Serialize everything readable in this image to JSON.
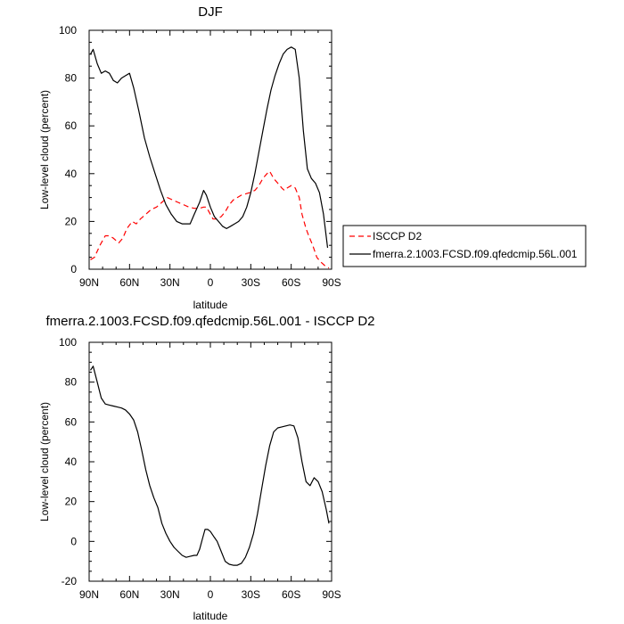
{
  "chart_data": [
    {
      "type": "line",
      "title": "DJF",
      "xlabel": "latitude",
      "ylabel": "Low-level cloud (percent)",
      "xlim": [
        90,
        -90
      ],
      "ylim": [
        0,
        100
      ],
      "x_tick_labels": [
        "90N",
        "60N",
        "30N",
        "0",
        "30S",
        "60S",
        "90S"
      ],
      "x_tick_values": [
        90,
        60,
        30,
        0,
        -30,
        -60,
        -90
      ],
      "y_tick_values": [
        0,
        20,
        40,
        60,
        80,
        100
      ],
      "legend_position": "right",
      "series": [
        {
          "name": "ISCCP D2",
          "color": "#ff0000",
          "dash": true,
          "points": [
            [
              89,
              4
            ],
            [
              86,
              5
            ],
            [
              82,
              10
            ],
            [
              78,
              14
            ],
            [
              75,
              14
            ],
            [
              72,
              13
            ],
            [
              68,
              11
            ],
            [
              65,
              13
            ],
            [
              62,
              17
            ],
            [
              58,
              20
            ],
            [
              55,
              19
            ],
            [
              52,
              21
            ],
            [
              48,
              23
            ],
            [
              44,
              25
            ],
            [
              40,
              26
            ],
            [
              36,
              28
            ],
            [
              32,
              30
            ],
            [
              28,
              29
            ],
            [
              24,
              28
            ],
            [
              20,
              27
            ],
            [
              16,
              26
            ],
            [
              12,
              25.5
            ],
            [
              8,
              25.5
            ],
            [
              5,
              26
            ],
            [
              3,
              26
            ],
            [
              0,
              23
            ],
            [
              -2,
              21
            ],
            [
              -5,
              21
            ],
            [
              -8,
              22
            ],
            [
              -11,
              24
            ],
            [
              -14,
              27
            ],
            [
              -17,
              29
            ],
            [
              -20,
              30
            ],
            [
              -23,
              31
            ],
            [
              -26,
              31.5
            ],
            [
              -29,
              32
            ],
            [
              -33,
              33
            ],
            [
              -36,
              35
            ],
            [
              -39,
              38
            ],
            [
              -42,
              40
            ],
            [
              -44,
              41
            ],
            [
              -47,
              38
            ],
            [
              -50,
              36
            ],
            [
              -53,
              34
            ],
            [
              -55,
              33
            ],
            [
              -57,
              34
            ],
            [
              -60,
              35
            ],
            [
              -63,
              34
            ],
            [
              -66,
              30
            ],
            [
              -68,
              23
            ],
            [
              -71,
              17
            ],
            [
              -73,
              14
            ],
            [
              -76,
              10
            ],
            [
              -79,
              5
            ],
            [
              -82,
              3
            ],
            [
              -85,
              1.5
            ],
            [
              -88,
              0.5
            ]
          ]
        },
        {
          "name": "fmerra.2.1003.FCSD.f09.qfedcmip.56L.001",
          "color": "#000000",
          "dash": false,
          "points": [
            [
              89,
              90
            ],
            [
              87,
              92
            ],
            [
              84,
              86
            ],
            [
              81,
              82
            ],
            [
              78,
              83
            ],
            [
              75,
              82
            ],
            [
              72,
              79
            ],
            [
              69,
              78
            ],
            [
              66,
              80
            ],
            [
              63,
              81
            ],
            [
              60,
              82
            ],
            [
              57,
              76
            ],
            [
              53,
              66
            ],
            [
              49,
              55
            ],
            [
              45,
              47
            ],
            [
              41,
              40
            ],
            [
              37,
              33
            ],
            [
              33,
              27
            ],
            [
              29,
              23
            ],
            [
              25,
              20
            ],
            [
              21,
              19
            ],
            [
              18,
              19
            ],
            [
              15,
              19
            ],
            [
              12,
              23
            ],
            [
              8,
              28
            ],
            [
              5,
              33
            ],
            [
              3,
              31
            ],
            [
              0,
              26
            ],
            [
              -3,
              22
            ],
            [
              -6,
              20
            ],
            [
              -9,
              18
            ],
            [
              -12,
              17
            ],
            [
              -15,
              18
            ],
            [
              -18,
              19
            ],
            [
              -21,
              20
            ],
            [
              -24,
              22
            ],
            [
              -27,
              26
            ],
            [
              -30,
              32
            ],
            [
              -33,
              40
            ],
            [
              -36,
              49
            ],
            [
              -39,
              58
            ],
            [
              -42,
              67
            ],
            [
              -45,
              75
            ],
            [
              -48,
              81
            ],
            [
              -51,
              86
            ],
            [
              -54,
              90
            ],
            [
              -57,
              92
            ],
            [
              -60,
              93
            ],
            [
              -63,
              92
            ],
            [
              -66,
              80
            ],
            [
              -69,
              58
            ],
            [
              -72,
              42
            ],
            [
              -75,
              38
            ],
            [
              -78,
              36
            ],
            [
              -81,
              32
            ],
            [
              -84,
              23
            ],
            [
              -87,
              9
            ]
          ]
        }
      ]
    },
    {
      "type": "line",
      "title": "fmerra.2.1003.FCSD.f09.qfedcmip.56L.001 - ISCCP D2",
      "xlabel": "latitude",
      "ylabel": "Low-level cloud (percent)",
      "xlim": [
        90,
        -90
      ],
      "ylim": [
        -20,
        100
      ],
      "x_tick_labels": [
        "90N",
        "60N",
        "30N",
        "0",
        "30S",
        "60S",
        "90S"
      ],
      "x_tick_values": [
        90,
        60,
        30,
        0,
        -30,
        -60,
        -90
      ],
      "y_tick_values": [
        -20,
        0,
        20,
        40,
        60,
        80,
        100
      ],
      "series": [
        {
          "color": "#000000",
          "dash": false,
          "points": [
            [
              89,
              86
            ],
            [
              87,
              88
            ],
            [
              84,
              80
            ],
            [
              81,
              72
            ],
            [
              78,
              69
            ],
            [
              75,
              68.5
            ],
            [
              72,
              68
            ],
            [
              69,
              67.5
            ],
            [
              66,
              67
            ],
            [
              63,
              66
            ],
            [
              60,
              64
            ],
            [
              57,
              61
            ],
            [
              54,
              55
            ],
            [
              51,
              46
            ],
            [
              48,
              36
            ],
            [
              45,
              28
            ],
            [
              42,
              22
            ],
            [
              39,
              17
            ],
            [
              36,
              9
            ],
            [
              33,
              4
            ],
            [
              30,
              0
            ],
            [
              27,
              -3
            ],
            [
              24,
              -5
            ],
            [
              21,
              -7
            ],
            [
              18,
              -8
            ],
            [
              15,
              -7.5
            ],
            [
              12,
              -7
            ],
            [
              10,
              -7
            ],
            [
              8,
              -4
            ],
            [
              6,
              1
            ],
            [
              4,
              6
            ],
            [
              2,
              6
            ],
            [
              0,
              5
            ],
            [
              -3,
              2
            ],
            [
              -5,
              0
            ],
            [
              -8,
              -5
            ],
            [
              -11,
              -10
            ],
            [
              -14,
              -11.5
            ],
            [
              -17,
              -12
            ],
            [
              -20,
              -12
            ],
            [
              -23,
              -11
            ],
            [
              -26,
              -8
            ],
            [
              -29,
              -3
            ],
            [
              -32,
              4
            ],
            [
              -35,
              14
            ],
            [
              -38,
              26
            ],
            [
              -41,
              38
            ],
            [
              -44,
              48
            ],
            [
              -47,
              55
            ],
            [
              -50,
              57
            ],
            [
              -53,
              57.5
            ],
            [
              -56,
              58
            ],
            [
              -59,
              58.5
            ],
            [
              -62,
              58
            ],
            [
              -65,
              52
            ],
            [
              -68,
              40
            ],
            [
              -71,
              30
            ],
            [
              -74,
              28
            ],
            [
              -77,
              32
            ],
            [
              -80,
              30
            ],
            [
              -83,
              25
            ],
            [
              -86,
              16
            ],
            [
              -88,
              9
            ]
          ]
        }
      ]
    }
  ]
}
